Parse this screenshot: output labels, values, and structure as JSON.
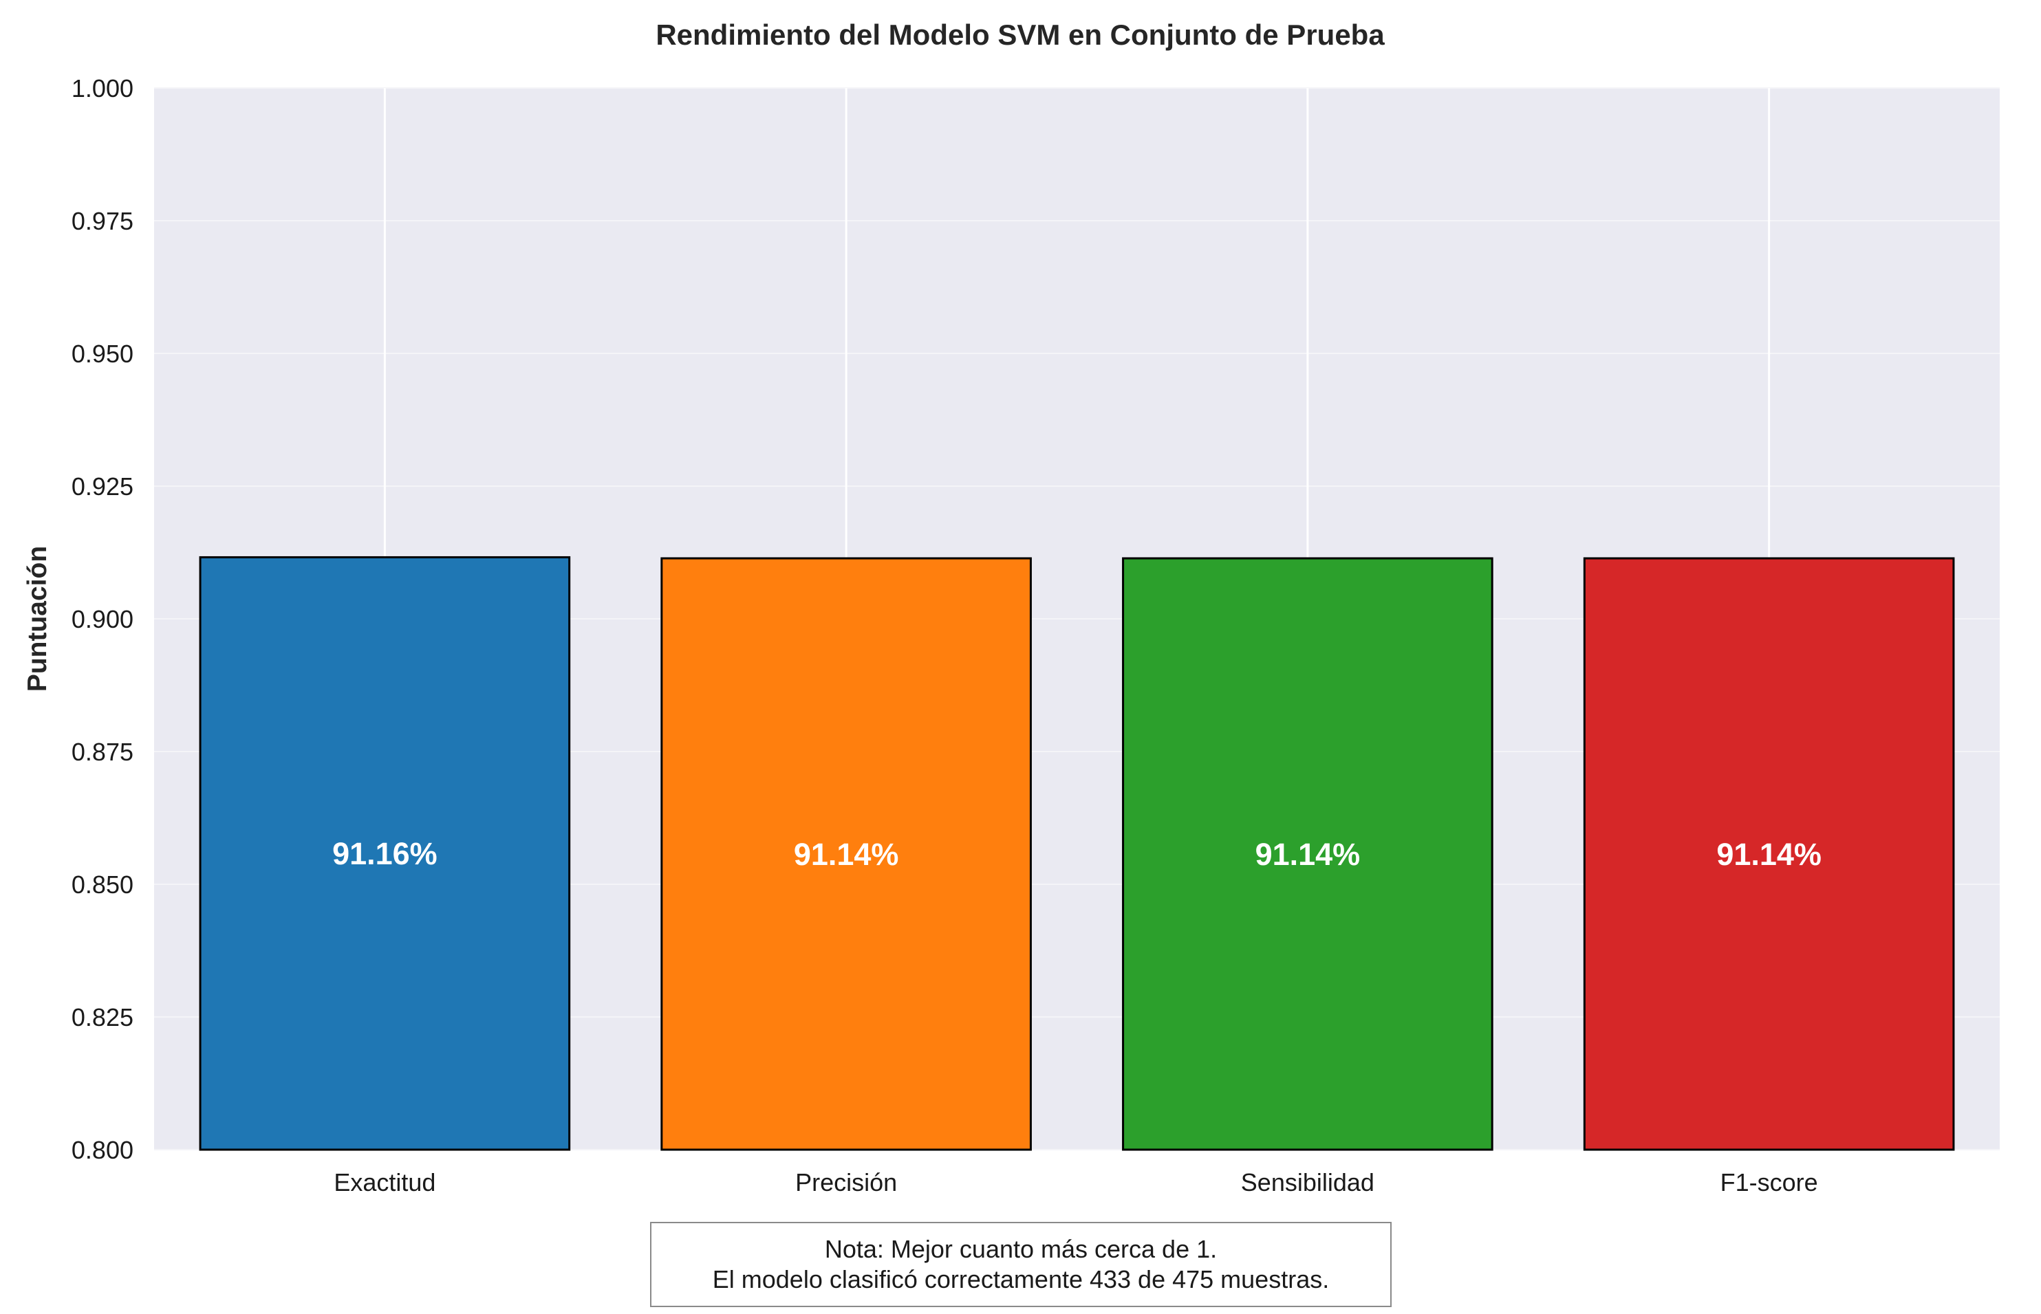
{
  "chart_data": {
    "type": "bar",
    "title": "Rendimiento del Modelo SVM en Conjunto de Prueba",
    "xlabel": "",
    "ylabel": "Puntuación",
    "categories": [
      "Exactitud",
      "Precisión",
      "Sensibilidad",
      "F1-score"
    ],
    "values": [
      0.9116,
      0.9114,
      0.9114,
      0.9114
    ],
    "data_labels": [
      "91.16%",
      "91.14%",
      "91.14%",
      "91.14%"
    ],
    "colors": [
      "#1f77b4",
      "#ff7f0e",
      "#2ca02c",
      "#d62728"
    ],
    "ylim": [
      0.8,
      1.0
    ],
    "yticks": [
      0.8,
      0.825,
      0.85,
      0.875,
      0.9,
      0.925,
      0.95,
      0.975,
      1.0
    ],
    "ytick_labels": [
      "0.800",
      "0.825",
      "0.850",
      "0.875",
      "0.900",
      "0.925",
      "0.950",
      "0.975",
      "1.000"
    ],
    "grid": true,
    "plot_background": "#eaeaf2",
    "bar_edge_color": "#000000"
  },
  "note": {
    "line1": "Nota: Mejor cuanto más cerca de 1.",
    "line2": "El modelo clasificó correctamente 433 de 475 muestras."
  }
}
